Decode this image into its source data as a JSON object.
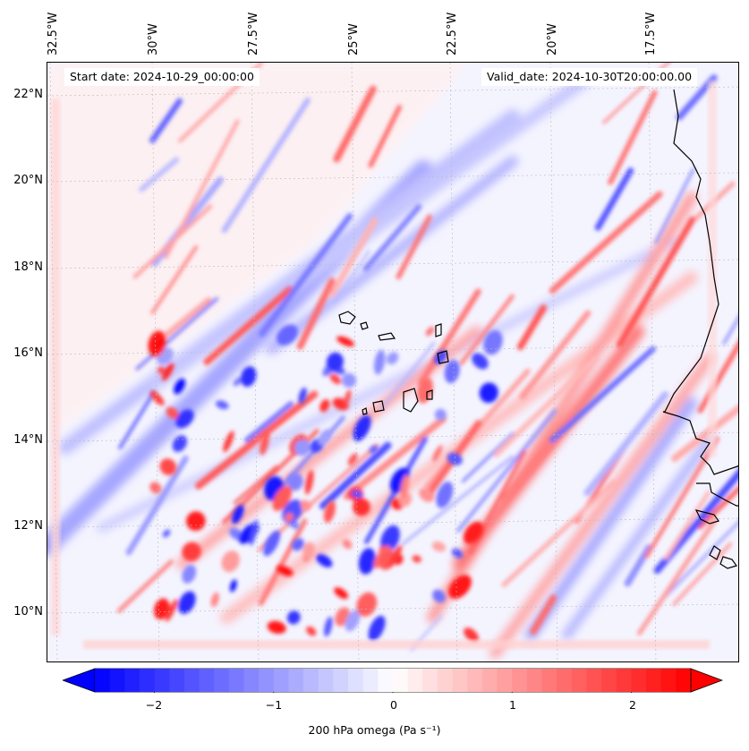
{
  "annotations": {
    "start": "Start date: 2024-10-29_00:00:00",
    "valid": "Valid_date: 2024-10-30T20:00:00.00"
  },
  "map": {
    "field": "200 hPa omega",
    "lon_labels": [
      "32.5°W",
      "30°W",
      "27.5°W",
      "25°W",
      "22.5°W",
      "20°W",
      "17.5°W"
    ],
    "lat_labels": [
      "22°N",
      "20°N",
      "18°N",
      "16°N",
      "14°N",
      "12°N",
      "10°N"
    ],
    "colormap": "bwr",
    "colors": {
      "negative": "#0000ff",
      "zero": "#ffffff",
      "positive": "#ff0000",
      "coast": "#000000"
    }
  },
  "colorbar": {
    "ticks": [
      "−2",
      "−1",
      "0",
      "1",
      "2"
    ],
    "tick_values": [
      -2,
      -1,
      0,
      1,
      2
    ],
    "range": [
      -2.5,
      2.5
    ],
    "extend": "both",
    "label": "200 hPa omega (Pa s⁻¹)"
  }
}
